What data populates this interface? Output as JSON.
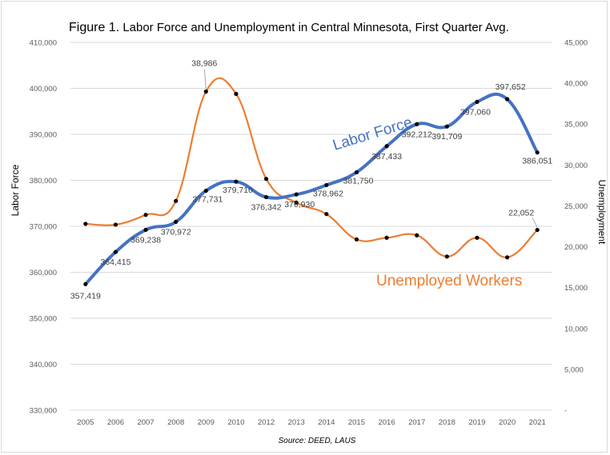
{
  "title_prefix": "Figure 1.",
  "title_text": "Labor Force and Unemployment  in Central Minnesota, First Quarter Avg.",
  "chart_data": {
    "type": "line",
    "title": "Figure 1. Labor Force and Unemployment in Central Minnesota, First Quarter Avg.",
    "source": "Source: DEED, LAUS",
    "categories": [
      "2005",
      "2006",
      "2007",
      "2008",
      "2009",
      "2010",
      "2012",
      "2013",
      "2014",
      "2015",
      "2016",
      "2017",
      "2018",
      "2019",
      "2020",
      "2021"
    ],
    "left_axis": {
      "label": "Labor Force",
      "min": 330000,
      "max": 410000,
      "step": 10000,
      "tick_labels": [
        "330,000",
        "340,000",
        "350,000",
        "360,000",
        "370,000",
        "380,000",
        "390,000",
        "400,000",
        "410,000"
      ]
    },
    "right_axis": {
      "label": "Unemployment",
      "min": 0,
      "max": 45000,
      "step": 5000,
      "tick_labels": [
        "-",
        "5,000",
        "10,000",
        "15,000",
        "20,000",
        "25,000",
        "30,000",
        "35,000",
        "40,000",
        "45,000"
      ]
    },
    "series": [
      {
        "name": "Labor Force",
        "axis": "left",
        "color": "#4472c4",
        "values": [
          357419,
          364415,
          369238,
          370972,
          377731,
          379710,
          376342,
          376930,
          378962,
          381750,
          387433,
          392212,
          391709,
          397060,
          397652,
          386051
        ],
        "labels": [
          "357,419",
          "364,415",
          "369,238",
          "370,972",
          "377,731",
          "379,710",
          "376,342",
          "376,930",
          "378,962",
          "381,750",
          "387,433",
          "392,212",
          "391,709",
          "397,060",
          "397,652",
          "386,051"
        ]
      },
      {
        "name": "Unemployed Workers",
        "axis": "right",
        "color": "#ed7d31",
        "values": [
          22800,
          22700,
          23900,
          25600,
          38986,
          38700,
          28300,
          25400,
          24000,
          20900,
          21100,
          21400,
          18800,
          21100,
          18700,
          22052
        ],
        "labels": {
          "4": "38,986",
          "15": "22,052"
        }
      }
    ],
    "annotations": {
      "labor_force": "Labor Force",
      "unemployed": "Unemployed Workers"
    },
    "grid": true,
    "legend": "none"
  }
}
